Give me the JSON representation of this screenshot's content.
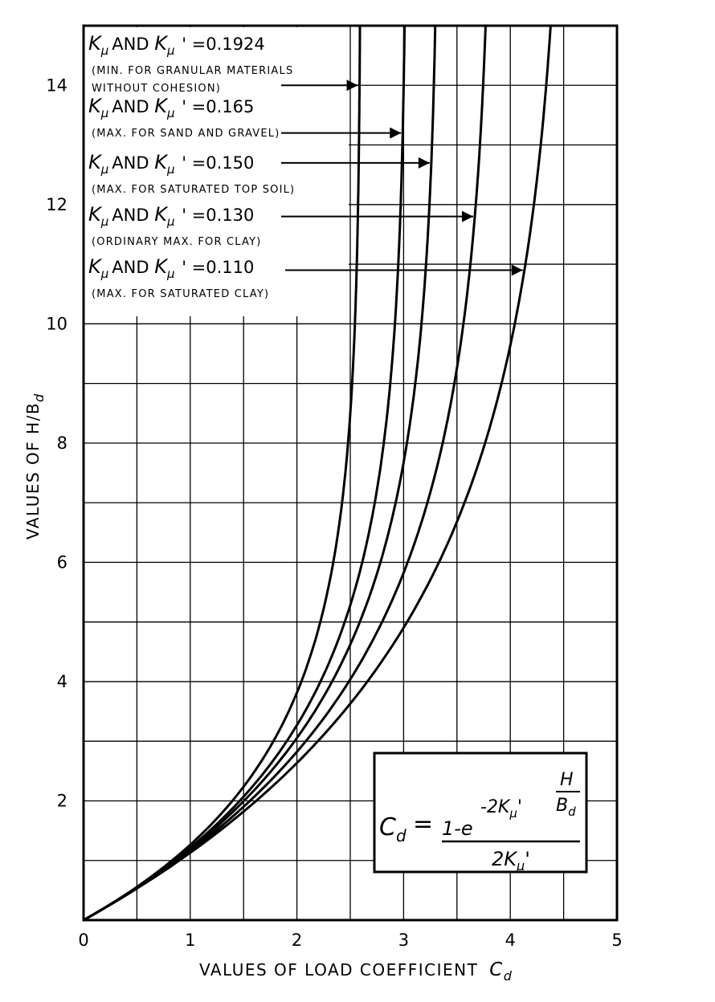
{
  "chart_data": {
    "type": "line",
    "xlabel": "VALUES OF LOAD COEFFICIENT",
    "xlabel_symbol": "C",
    "xlabel_symbol_sub": "d",
    "ylabel": "VALUES OF H/B",
    "ylabel_sub": "d",
    "xlim": [
      0,
      5
    ],
    "ylim": [
      0,
      15
    ],
    "x_ticks": [
      "0",
      "1",
      "2",
      "3",
      "4",
      "5"
    ],
    "y_ticks": [
      "2",
      "4",
      "6",
      "8",
      "10",
      "12",
      "14"
    ],
    "grid": true,
    "x_grid_step": 0.5,
    "y_grid_step": 1,
    "series": [
      {
        "name": "Kμ AND Kμ' =0.1924",
        "k": 0.1924,
        "label_value": "=0.1924",
        "note_lines": [
          "(MIN. FOR GRANULAR MATERIALS",
          "WITHOUT COHESION)"
        ]
      },
      {
        "name": "Kμ AND Kμ' =0.165",
        "k": 0.165,
        "label_value": "=0.165",
        "note_lines": [
          "(MAX. FOR SAND AND GRAVEL)"
        ]
      },
      {
        "name": "Kμ AND Kμ' =0.150",
        "k": 0.15,
        "label_value": "=0.150",
        "note_lines": [
          "(MAX. FOR SATURATED TOP SOIL)"
        ]
      },
      {
        "name": "Kμ AND Kμ' =0.130",
        "k": 0.13,
        "label_value": "=0.130",
        "note_lines": [
          "(ORDINARY MAX. FOR CLAY)"
        ]
      },
      {
        "name": "Kμ AND Kμ' =0.110",
        "k": 0.11,
        "label_value": "=0.110",
        "note_lines": [
          "(MAX. FOR SATURATED CLAY)"
        ]
      }
    ],
    "legend_prefix": "K",
    "legend_prefix_sub": "μ",
    "legend_and": "AND",
    "formula": {
      "lhs": "C",
      "lhs_sub": "d",
      "equals": "=",
      "numerator_lead": "1-e",
      "exponent": "-2K",
      "exponent_sub": "μ",
      "exponent_prime": "'",
      "frac_top": "H",
      "frac_bottom": "B",
      "frac_bottom_sub": "d",
      "denominator": "2K",
      "denominator_sub": "μ",
      "denominator_prime": "'"
    },
    "colors": {
      "ink": "#000000",
      "background": "#ffffff"
    }
  }
}
